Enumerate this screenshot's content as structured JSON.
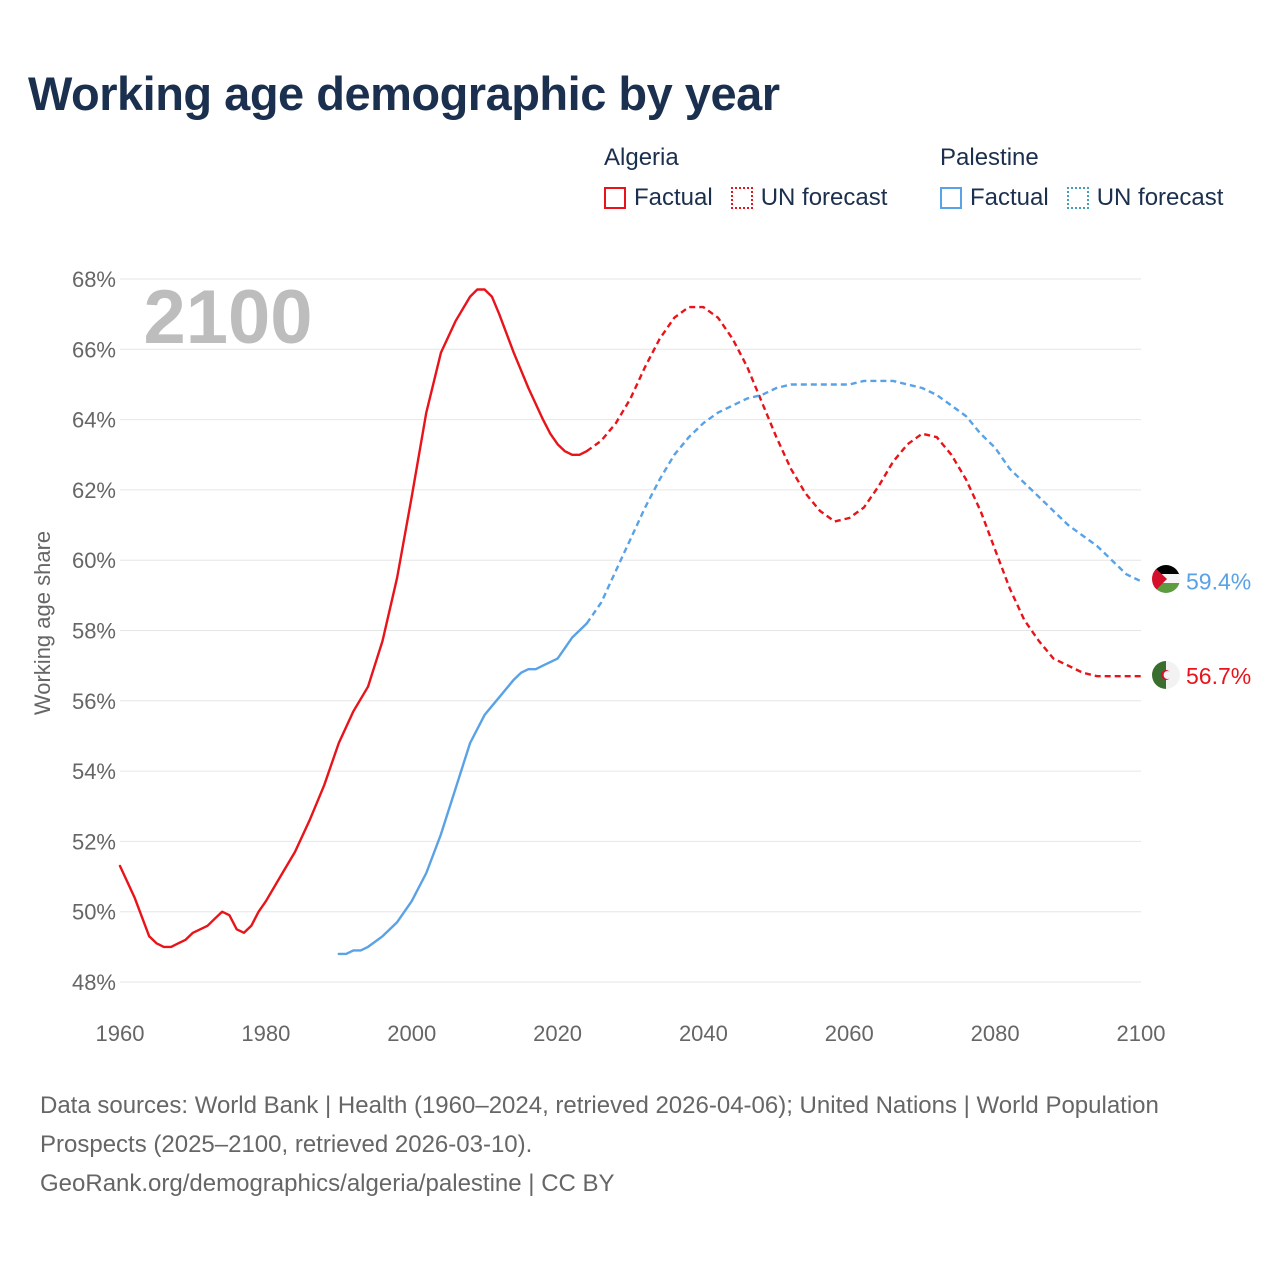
{
  "title": "Working age demographic by year",
  "legend": {
    "groups": [
      {
        "country": "Algeria",
        "color": "#e8141a",
        "factual_label": "Factual",
        "forecast_label": "UN forecast"
      },
      {
        "country": "Palestine",
        "color": "#5aa2e6",
        "factual_label": "Factual",
        "forecast_label": "UN forecast"
      }
    ]
  },
  "colors": {
    "algeria": "#e8141a",
    "palestine": "#5aa2e6",
    "palestine_forecast_swatch": "#3fa0b8",
    "title": "#1b2f4e",
    "axis_text": "#666666",
    "grid": "#e6e6e6",
    "year_watermark": "#bdbdbd"
  },
  "footer": {
    "sources": "Data sources: World Bank | Health (1960–2024, retrieved 2026-04-06); United Nations | World Population Prospects (2025–2100, retrieved 2026-03-10).",
    "url": "GeoRank.org/demographics/algeria/palestine | CC BY"
  },
  "chart_data": {
    "type": "line",
    "title": "Working age demographic by year",
    "xlabel": "",
    "ylabel": "Working age share",
    "xlim": [
      1960,
      2100
    ],
    "ylim": [
      48,
      68
    ],
    "x_ticks": [
      1960,
      1980,
      2000,
      2020,
      2040,
      2060,
      2080,
      2100
    ],
    "y_ticks": [
      48,
      50,
      52,
      54,
      56,
      58,
      60,
      62,
      64,
      66,
      68
    ],
    "y_tick_suffix": "%",
    "grid": true,
    "current_year_label": "2100",
    "series": [
      {
        "name": "Algeria",
        "color": "#e8141a",
        "end_label": "56.7%",
        "flag_icon": "algeria-flag-icon",
        "factual": {
          "x": [
            1960,
            1962,
            1964,
            1965,
            1966,
            1967,
            1968,
            1969,
            1970,
            1972,
            1973,
            1974,
            1975,
            1976,
            1977,
            1978,
            1979,
            1980,
            1982,
            1984,
            1986,
            1988,
            1990,
            1992,
            1994,
            1996,
            1998,
            2000,
            2002,
            2004,
            2006,
            2008,
            2009,
            2010,
            2011,
            2012,
            2014,
            2016,
            2018,
            2019,
            2020,
            2021,
            2022,
            2023,
            2024
          ],
          "y": [
            51.3,
            50.4,
            49.3,
            49.1,
            49.0,
            49.0,
            49.1,
            49.2,
            49.4,
            49.6,
            49.8,
            50.0,
            49.9,
            49.5,
            49.4,
            49.6,
            50.0,
            50.3,
            51.0,
            51.7,
            52.6,
            53.6,
            54.8,
            55.7,
            56.4,
            57.7,
            59.5,
            61.8,
            64.2,
            65.9,
            66.8,
            67.5,
            67.7,
            67.7,
            67.5,
            67.0,
            65.9,
            64.9,
            64.0,
            63.6,
            63.3,
            63.1,
            63.0,
            63.0,
            63.1
          ]
        },
        "forecast": {
          "x": [
            2024,
            2026,
            2028,
            2030,
            2032,
            2034,
            2036,
            2038,
            2040,
            2042,
            2044,
            2046,
            2048,
            2050,
            2052,
            2054,
            2056,
            2058,
            2060,
            2062,
            2064,
            2066,
            2068,
            2070,
            2072,
            2074,
            2076,
            2078,
            2080,
            2082,
            2084,
            2086,
            2088,
            2090,
            2092,
            2094,
            2096,
            2098,
            2100
          ],
          "y": [
            63.1,
            63.4,
            63.9,
            64.6,
            65.5,
            66.3,
            66.9,
            67.2,
            67.2,
            66.9,
            66.3,
            65.5,
            64.5,
            63.5,
            62.6,
            61.9,
            61.4,
            61.1,
            61.2,
            61.5,
            62.1,
            62.8,
            63.3,
            63.6,
            63.5,
            63.0,
            62.3,
            61.4,
            60.3,
            59.2,
            58.3,
            57.7,
            57.2,
            57.0,
            56.8,
            56.7,
            56.7,
            56.7,
            56.7
          ]
        }
      },
      {
        "name": "Palestine",
        "color": "#5aa2e6",
        "end_label": "59.4%",
        "flag_icon": "palestine-flag-icon",
        "factual": {
          "x": [
            1990,
            1991,
            1992,
            1993,
            1994,
            1996,
            1998,
            2000,
            2002,
            2004,
            2006,
            2008,
            2010,
            2012,
            2014,
            2015,
            2016,
            2017,
            2018,
            2020,
            2021,
            2022,
            2023,
            2024
          ],
          "y": [
            48.8,
            48.8,
            48.9,
            48.9,
            49.0,
            49.3,
            49.7,
            50.3,
            51.1,
            52.2,
            53.5,
            54.8,
            55.6,
            56.1,
            56.6,
            56.8,
            56.9,
            56.9,
            57.0,
            57.2,
            57.5,
            57.8,
            58.0,
            58.2
          ]
        },
        "forecast": {
          "x": [
            2024,
            2026,
            2028,
            2030,
            2032,
            2034,
            2036,
            2038,
            2040,
            2042,
            2044,
            2046,
            2048,
            2050,
            2052,
            2054,
            2056,
            2058,
            2060,
            2062,
            2064,
            2066,
            2068,
            2070,
            2072,
            2074,
            2076,
            2078,
            2080,
            2082,
            2084,
            2086,
            2088,
            2090,
            2092,
            2094,
            2096,
            2098,
            2100
          ],
          "y": [
            58.2,
            58.8,
            59.7,
            60.6,
            61.5,
            62.3,
            63.0,
            63.5,
            63.9,
            64.2,
            64.4,
            64.6,
            64.7,
            64.9,
            65.0,
            65.0,
            65.0,
            65.0,
            65.0,
            65.1,
            65.1,
            65.1,
            65.0,
            64.9,
            64.7,
            64.4,
            64.1,
            63.6,
            63.2,
            62.6,
            62.2,
            61.8,
            61.4,
            61.0,
            60.7,
            60.4,
            60.0,
            59.6,
            59.4
          ]
        }
      }
    ]
  }
}
